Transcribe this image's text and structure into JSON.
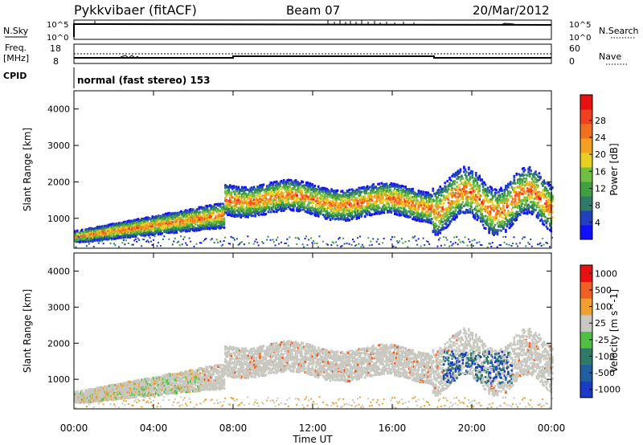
{
  "header": {
    "station": "Pykkvibaer (fitACF)",
    "beam": "Beam 07",
    "date": "20/Mar/2012"
  },
  "panels": {
    "nsky": {
      "left_label": "N.Sky",
      "right_label": "N.Search",
      "left_ticks": [
        "10^5",
        "10^0"
      ],
      "right_ticks": [
        "10^5",
        "10^0"
      ]
    },
    "freq": {
      "left_label_top": "Freq.",
      "left_label_bottom": "[MHz]",
      "right_label": "Nave",
      "left_ticks": [
        "18",
        "8"
      ],
      "right_ticks": [
        "60",
        "0"
      ]
    },
    "cpid": {
      "label": "CPID",
      "text": "normal (fast stereo) 153"
    }
  },
  "chart_data": [
    {
      "type": "heatmap",
      "title": "",
      "ylabel": "Slant Range [km]",
      "xlabel": "",
      "x_range_hours": [
        0,
        24
      ],
      "ylim": [
        180,
        4500
      ],
      "y_ticks": [
        1000,
        2000,
        3000,
        4000
      ],
      "colorbar": {
        "label": "Power [dB]",
        "ticks": [
          "4",
          "8",
          "12",
          "16",
          "20",
          "24",
          "28"
        ],
        "colors": [
          "#1010ff",
          "#2040c0",
          "#2e7b68",
          "#40a040",
          "#70c040",
          "#e8d020",
          "#f5a020",
          "#f07020",
          "#f04020",
          "#e81010"
        ]
      }
    },
    {
      "type": "heatmap",
      "title": "",
      "ylabel": "Slant Range [km]",
      "xlabel": "Time UT",
      "x_range_hours": [
        0,
        24
      ],
      "x_ticks": [
        "00:00",
        "04:00",
        "08:00",
        "12:00",
        "16:00",
        "20:00",
        "00:00"
      ],
      "ylim": [
        180,
        4500
      ],
      "y_ticks": [
        1000,
        2000,
        3000,
        4000
      ],
      "colorbar": {
        "label": "Velocity [m s^-1]",
        "ticks": [
          "1000",
          "500",
          "100",
          "25",
          "-25",
          "-100",
          "-500",
          "-1000"
        ],
        "colors": [
          "#1a3ac8",
          "#2060a0",
          "#2e7b68",
          "#50c040",
          "#c8c8c0",
          "#f0a030",
          "#f06020",
          "#e81010"
        ]
      }
    }
  ],
  "colors": {
    "ground_scatter": "#c8c8c0"
  }
}
